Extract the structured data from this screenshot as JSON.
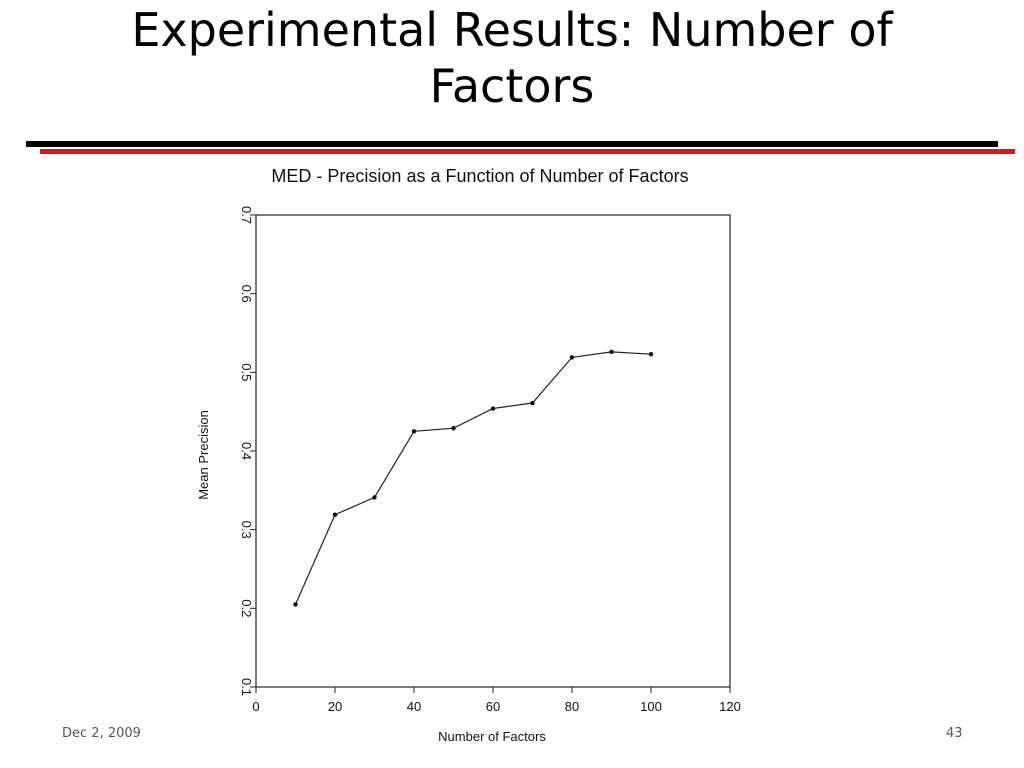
{
  "slide": {
    "title_line1": "Experimental Results: Number of",
    "title_line2": "Factors",
    "footer_date": "Dec 2, 2009",
    "page_number": "43",
    "colors": {
      "rule_top": "#000000",
      "rule_bottom": "#e0141c"
    }
  },
  "chart_data": {
    "type": "line",
    "title": "MED - Precision as a Function of Number of Factors",
    "xlabel": "Number of Factors",
    "ylabel": "Mean Precision",
    "xlim": [
      0,
      120
    ],
    "ylim": [
      0.1,
      0.7
    ],
    "xticks": [
      0,
      20,
      40,
      60,
      80,
      100,
      120
    ],
    "yticks": [
      0.1,
      0.2,
      0.3,
      0.4,
      0.5,
      0.6,
      0.7
    ],
    "ytick_rotation": "rotated 90 degrees",
    "grid": false,
    "series": [
      {
        "x": [
          10,
          20,
          30,
          40,
          50,
          60,
          70,
          80,
          90,
          100
        ],
        "y": [
          0.205,
          0.319,
          0.341,
          0.425,
          0.429,
          0.454,
          0.461,
          0.519,
          0.526,
          0.523
        ]
      }
    ]
  }
}
